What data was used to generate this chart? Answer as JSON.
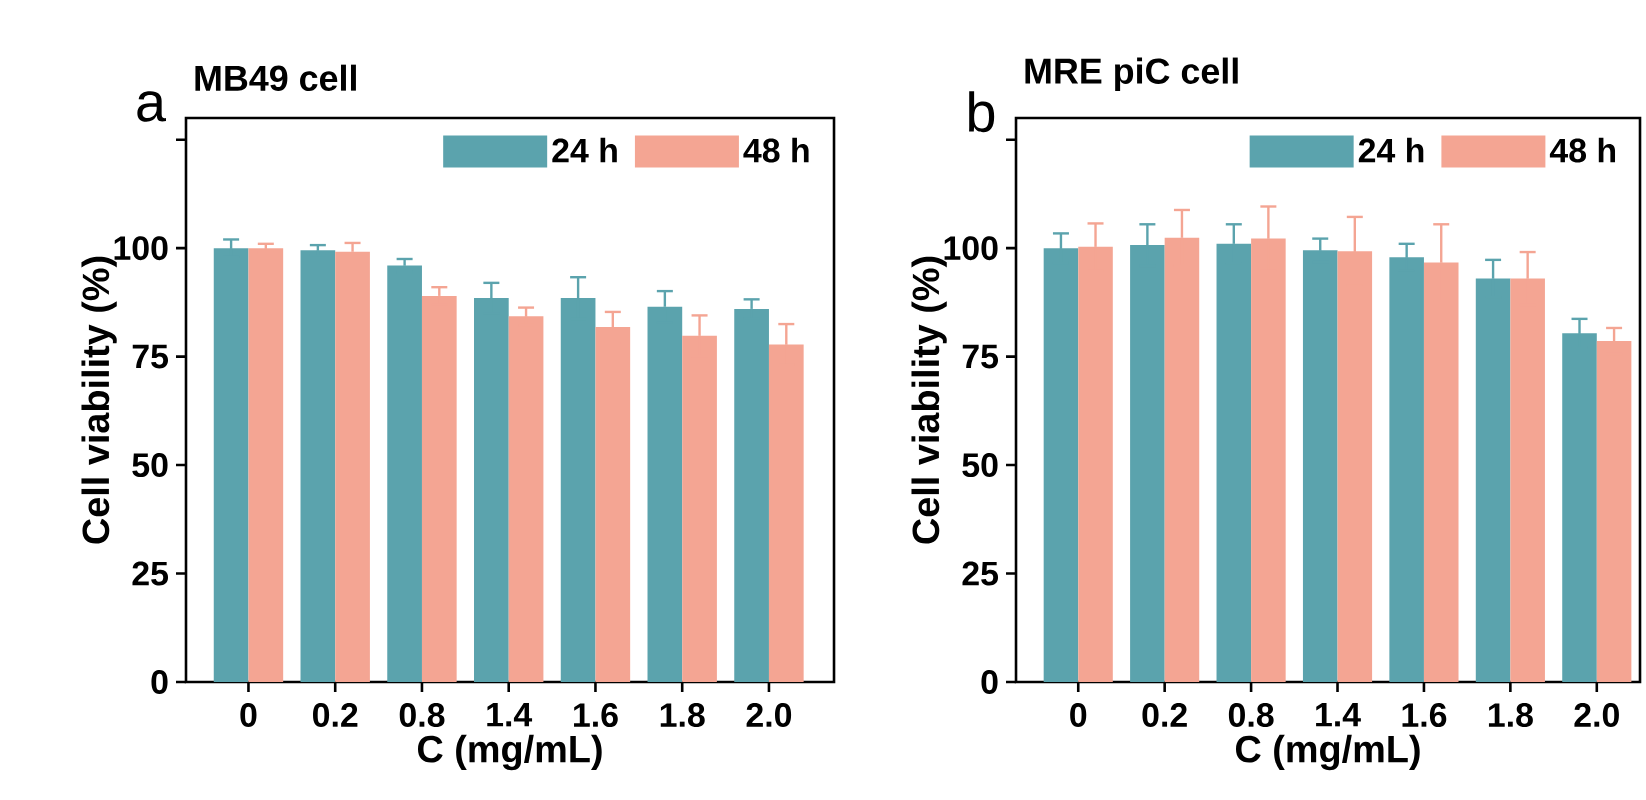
{
  "chart_data": [
    {
      "type": "bar",
      "title": "MB49 cell",
      "annotations": [
        "a"
      ],
      "xlabel": "C (mg/mL)",
      "ylabel": "Cell viability (%)",
      "categories": [
        "0",
        "0.2",
        "0.8",
        "1.4",
        "1.6",
        "1.8",
        "2.0"
      ],
      "series": [
        {
          "name": "24 h",
          "color": "#5ba3ad",
          "values": [
            100,
            99.5,
            96,
            88.5,
            88.5,
            86.5,
            86
          ],
          "errors": [
            2,
            1.2,
            1.5,
            3.5,
            4.8,
            3.6,
            2.2
          ]
        },
        {
          "name": "48 h",
          "color": "#f4a593",
          "values": [
            100,
            99.2,
            89,
            84.3,
            81.8,
            79.8,
            77.8
          ],
          "errors": [
            1,
            2,
            2,
            2,
            3.5,
            4.7,
            4.7
          ]
        }
      ],
      "ylim": [
        0,
        130
      ],
      "yticks": [
        0,
        25,
        50,
        75,
        100,
        {
          "value": 125,
          "label": null
        }
      ],
      "legend": "top right"
    },
    {
      "type": "bar",
      "title": "MRE piC cell",
      "annotations": [
        "b"
      ],
      "xlabel": "C (mg/mL)",
      "ylabel": "Cell viability (%)",
      "categories": [
        "0",
        "0.2",
        "0.8",
        "1.4",
        "1.6",
        "1.8",
        "2.0"
      ],
      "series": [
        {
          "name": "24 h",
          "color": "#5ba3ad",
          "values": [
            100,
            100.7,
            101,
            99.5,
            97.9,
            93,
            80.4
          ],
          "errors": [
            3.4,
            4.8,
            4.5,
            2.7,
            3.1,
            4.3,
            3.3
          ]
        },
        {
          "name": "48 h",
          "color": "#f4a593",
          "values": [
            100.3,
            102.4,
            102.2,
            99.3,
            96.7,
            93,
            78.6
          ],
          "errors": [
            5.4,
            6.4,
            7.4,
            7.9,
            8.8,
            6.1,
            3
          ]
        }
      ],
      "ylim": [
        0,
        130
      ],
      "yticks": [
        0,
        25,
        50,
        75,
        100,
        {
          "value": 125,
          "label": null
        }
      ],
      "legend": "top right"
    }
  ]
}
